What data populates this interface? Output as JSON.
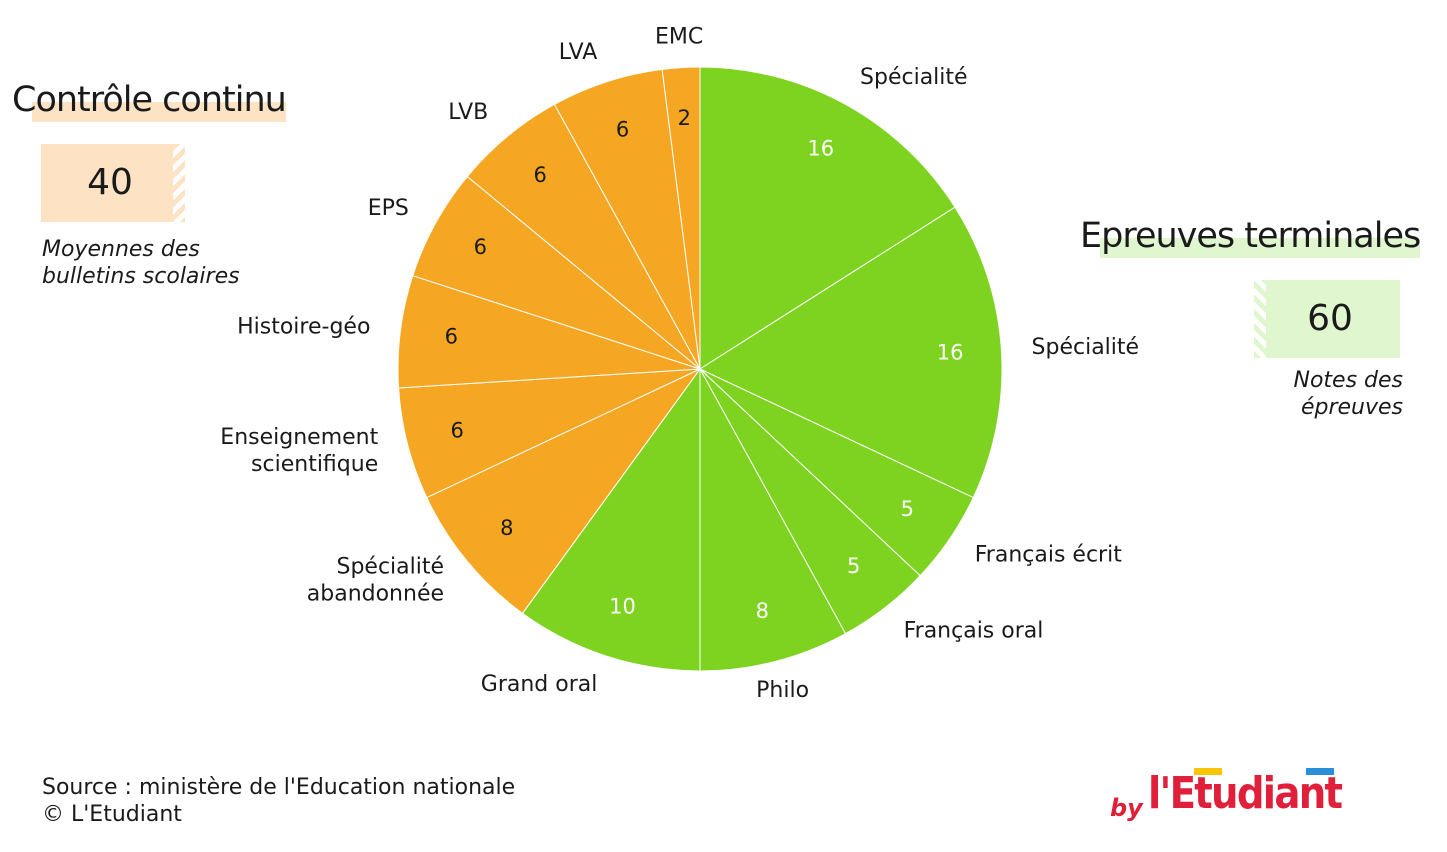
{
  "left_block": {
    "title": "Contrôle continu",
    "value": "40",
    "note_line1": "Moyennes des",
    "note_line2": "bulletins scolaires"
  },
  "right_block": {
    "title": "Epreuves terminales",
    "value": "60",
    "note_line1": "Notes des",
    "note_line2": "épreuves"
  },
  "colors": {
    "controle_continu": "#f5a623",
    "epreuves_terminales": "#7ed321",
    "label_on_orange": "#1a1a1a",
    "label_on_green": "#ffffff"
  },
  "chart_data": {
    "type": "pie",
    "start": "top, clockwise",
    "slices": [
      {
        "label_lines": [
          "Spécialité"
        ],
        "value": 16,
        "group": "epreuves_terminales"
      },
      {
        "label_lines": [
          "Spécialité"
        ],
        "value": 16,
        "group": "epreuves_terminales"
      },
      {
        "label_lines": [
          "Français écrit"
        ],
        "value": 5,
        "group": "epreuves_terminales"
      },
      {
        "label_lines": [
          "Français oral"
        ],
        "value": 5,
        "group": "epreuves_terminales"
      },
      {
        "label_lines": [
          "Philo"
        ],
        "value": 8,
        "group": "epreuves_terminales"
      },
      {
        "label_lines": [
          "Grand oral"
        ],
        "value": 10,
        "group": "epreuves_terminales"
      },
      {
        "label_lines": [
          "Spécialité",
          "abandonnée"
        ],
        "value": 8,
        "group": "controle_continu"
      },
      {
        "label_lines": [
          "Enseignement",
          "scientifique"
        ],
        "value": 6,
        "group": "controle_continu"
      },
      {
        "label_lines": [
          "Histoire-géo"
        ],
        "value": 6,
        "group": "controle_continu"
      },
      {
        "label_lines": [
          "EPS"
        ],
        "value": 6,
        "group": "controle_continu"
      },
      {
        "label_lines": [
          "LVB"
        ],
        "value": 6,
        "group": "controle_continu"
      },
      {
        "label_lines": [
          "LVA"
        ],
        "value": 6,
        "group": "controle_continu"
      },
      {
        "label_lines": [
          "EMC"
        ],
        "value": 2,
        "group": "controle_continu"
      }
    ]
  },
  "footer": {
    "source": "Source : ministère de l'Education nationale",
    "copyright": "© L'Etudiant"
  },
  "logo": {
    "by": "by",
    "word": "l'Etudiant"
  }
}
